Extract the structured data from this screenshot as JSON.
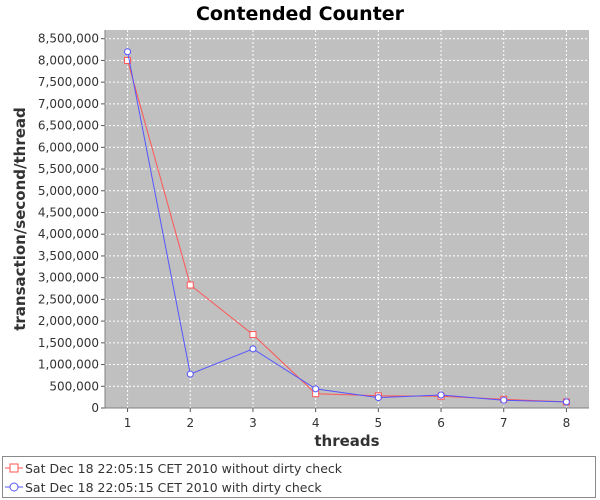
{
  "chart_data": {
    "type": "line",
    "title": "Contended Counter",
    "xlabel": "threads",
    "ylabel": "transaction/second/thread",
    "x": [
      1,
      2,
      3,
      4,
      5,
      6,
      7,
      8
    ],
    "xlim": [
      0.64,
      8.36
    ],
    "ylim": [
      0,
      8700000
    ],
    "yticks": [
      0,
      500000,
      1000000,
      1500000,
      2000000,
      2500000,
      3000000,
      3500000,
      4000000,
      4500000,
      5000000,
      5500000,
      6000000,
      6500000,
      7000000,
      7500000,
      8000000,
      8500000
    ],
    "ytick_labels": [
      "0",
      "500,000",
      "1,000,000",
      "1,500,000",
      "2,000,000",
      "2,500,000",
      "3,000,000",
      "3,500,000",
      "4,000,000",
      "4,500,000",
      "5,000,000",
      "5,500,000",
      "6,000,000",
      "6,500,000",
      "7,000,000",
      "7,500,000",
      "8,000,000",
      "8,500,000"
    ],
    "xtick_labels": [
      "1",
      "2",
      "3",
      "4",
      "5",
      "6",
      "7",
      "8"
    ],
    "grid": true,
    "legend_position": "bottom",
    "plot_background": "#c0c0c0",
    "series": [
      {
        "name": "Sat Dec 18 22:05:15 CET 2010 without dirty check",
        "color": "#ff5555",
        "marker": "square",
        "values": [
          8000000,
          2830000,
          1690000,
          330000,
          280000,
          270000,
          200000,
          140000
        ]
      },
      {
        "name": "Sat Dec 18 22:05:15 CET 2010 with dirty check",
        "color": "#5555ff",
        "marker": "circle",
        "values": [
          8200000,
          780000,
          1360000,
          440000,
          240000,
          300000,
          180000,
          140000
        ]
      }
    ]
  }
}
